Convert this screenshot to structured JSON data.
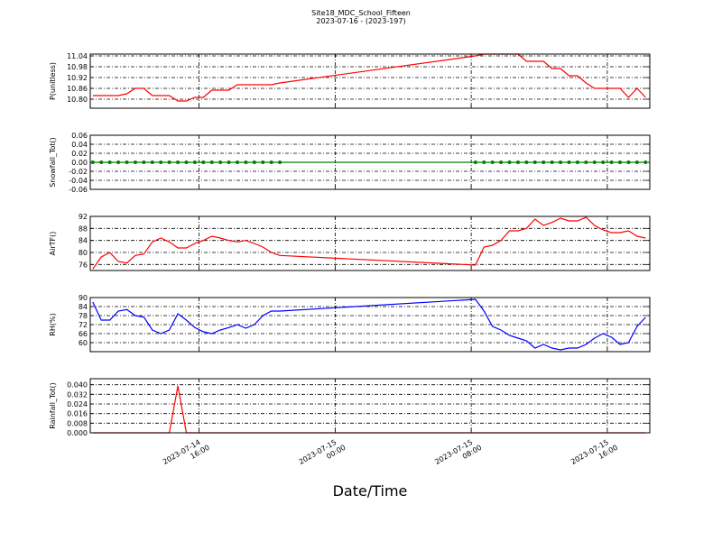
{
  "title": "Site18_MDC_School_Fifteen",
  "subtitle": "2023-07-16 - (2023-197)",
  "xlabel": "Date/Time",
  "xlim": [
    "2023-07-14 09:36",
    "2023-07-15 18:30"
  ],
  "xticks": [
    "2023-07-14 16:00",
    "2023-07-15 00:00",
    "2023-07-15 08:00",
    "2023-07-15 16:00"
  ],
  "grid": true,
  "x": [
    "2023-07-14 09:45",
    "2023-07-14 10:15",
    "2023-07-14 10:45",
    "2023-07-14 11:15",
    "2023-07-14 11:45",
    "2023-07-14 12:15",
    "2023-07-14 12:45",
    "2023-07-14 13:15",
    "2023-07-14 13:45",
    "2023-07-14 14:15",
    "2023-07-14 14:45",
    "2023-07-14 15:15",
    "2023-07-14 15:45",
    "2023-07-14 16:15",
    "2023-07-14 16:45",
    "2023-07-14 17:15",
    "2023-07-14 17:45",
    "2023-07-14 18:15",
    "2023-07-14 18:45",
    "2023-07-14 19:15",
    "2023-07-14 19:45",
    "2023-07-14 20:15",
    "2023-07-14 20:45",
    "2023-07-15 08:15",
    "2023-07-15 08:45",
    "2023-07-15 09:15",
    "2023-07-15 09:45",
    "2023-07-15 10:15",
    "2023-07-15 10:45",
    "2023-07-15 11:15",
    "2023-07-15 11:45",
    "2023-07-15 12:15",
    "2023-07-15 12:45",
    "2023-07-15 13:15",
    "2023-07-15 13:45",
    "2023-07-15 14:15",
    "2023-07-15 14:45",
    "2023-07-15 15:15",
    "2023-07-15 15:45",
    "2023-07-15 16:15",
    "2023-07-15 16:45",
    "2023-07-15 17:15",
    "2023-07-15 17:45",
    "2023-07-15 18:15"
  ],
  "chart_data": [
    {
      "type": "line",
      "ylabel": "P(unitless)",
      "ylim": [
        10.75,
        11.05
      ],
      "yticks": [
        {
          "value": 10.8,
          "label": "10.80"
        },
        10.86,
        10.92,
        10.98,
        11.04
      ],
      "series": [
        {
          "name": "P",
          "color": "#ff0000",
          "markers": false,
          "values": [
            10.82,
            10.82,
            10.82,
            10.82,
            10.83,
            10.86,
            10.86,
            10.82,
            10.82,
            10.82,
            10.79,
            10.79,
            10.81,
            10.81,
            10.85,
            10.85,
            10.85,
            10.88,
            10.88,
            10.88,
            10.88,
            10.88,
            10.89,
            11.04,
            11.05,
            11.05,
            11.05,
            11.05,
            11.05,
            11.01,
            11.01,
            11.01,
            10.97,
            10.97,
            10.93,
            10.93,
            10.89,
            10.86,
            10.86,
            10.86,
            10.86,
            10.81,
            10.86,
            10.81
          ]
        }
      ]
    },
    {
      "type": "line",
      "ylabel": "Snowfall_Tot()",
      "ylim": [
        -0.06,
        0.06
      ],
      "yticks": [
        -0.06,
        -0.04,
        -0.02,
        {
          "value": 0,
          "label": "0.00"
        },
        0.02,
        0.04,
        0.06
      ],
      "series": [
        {
          "name": "Snowfall_Tot",
          "color": "#008000",
          "markers": true,
          "values": [
            0,
            0,
            0,
            0,
            0,
            0,
            0,
            0,
            0,
            0,
            0,
            0,
            0,
            0,
            0,
            0,
            0,
            0,
            0,
            0,
            0,
            0,
            0,
            0,
            0,
            0,
            0,
            0,
            0,
            0,
            0,
            0,
            0,
            0,
            0,
            0,
            0,
            0,
            0,
            0,
            0,
            0,
            0,
            0
          ]
        }
      ]
    },
    {
      "type": "line",
      "ylabel": "AirTF()",
      "ylim": [
        74,
        92
      ],
      "yticks": [
        76,
        80,
        84,
        88,
        92
      ],
      "series": [
        {
          "name": "AirTF",
          "color": "#ff0000",
          "markers": false,
          "values": [
            74.5,
            78.5,
            80,
            77,
            76.5,
            79,
            79.5,
            83.5,
            84.8,
            83.5,
            81.5,
            81.5,
            83,
            84,
            85.4,
            84.8,
            84,
            83.5,
            84,
            83,
            81.8,
            80,
            79,
            75.8,
            81.8,
            82.4,
            84,
            87.2,
            87.2,
            88,
            91.1,
            89,
            90,
            91.4,
            90.5,
            90.5,
            91.7,
            89,
            87.5,
            86.6,
            86.6,
            87.2,
            85.4,
            84.8
          ]
        }
      ]
    },
    {
      "type": "line",
      "ylabel": "RH(%)",
      "ylim": [
        54,
        90
      ],
      "yticks": [
        60,
        66,
        72,
        78,
        84,
        90
      ],
      "series": [
        {
          "name": "RH",
          "color": "#0000ff",
          "markers": false,
          "values": [
            87,
            75,
            75,
            81,
            82,
            78,
            77,
            68.4,
            66,
            68.4,
            79.2,
            75,
            70,
            67.2,
            66,
            68.4,
            70,
            72,
            69.6,
            72,
            78,
            81,
            81,
            88.8,
            81,
            70.8,
            68.4,
            64.8,
            63,
            61.2,
            56.4,
            58.8,
            56.4,
            55.2,
            56.4,
            56.4,
            58.8,
            63,
            66,
            63.6,
            58.8,
            60,
            70.8,
            76.8
          ]
        }
      ]
    },
    {
      "type": "line",
      "ylabel": "Rainfall_Tot()",
      "ylim": [
        0,
        0.045
      ],
      "yticks": [
        {
          "value": 0,
          "label": "0.000"
        },
        0.008,
        0.016,
        0.024,
        0.032,
        {
          "value": 0.04,
          "label": "0.040"
        }
      ],
      "series": [
        {
          "name": "Rainfall_Tot",
          "color": "#ff0000",
          "markers": false,
          "values": [
            0,
            0,
            0,
            0,
            0,
            0,
            0,
            0,
            0,
            0,
            0.039,
            0,
            0,
            0,
            0,
            0,
            0,
            0,
            0,
            0,
            0,
            0,
            0,
            0,
            0,
            0,
            0,
            0,
            0,
            0,
            0,
            0,
            0,
            0,
            0,
            0,
            0,
            0,
            0,
            0,
            0,
            0,
            0,
            0
          ]
        }
      ]
    }
  ]
}
